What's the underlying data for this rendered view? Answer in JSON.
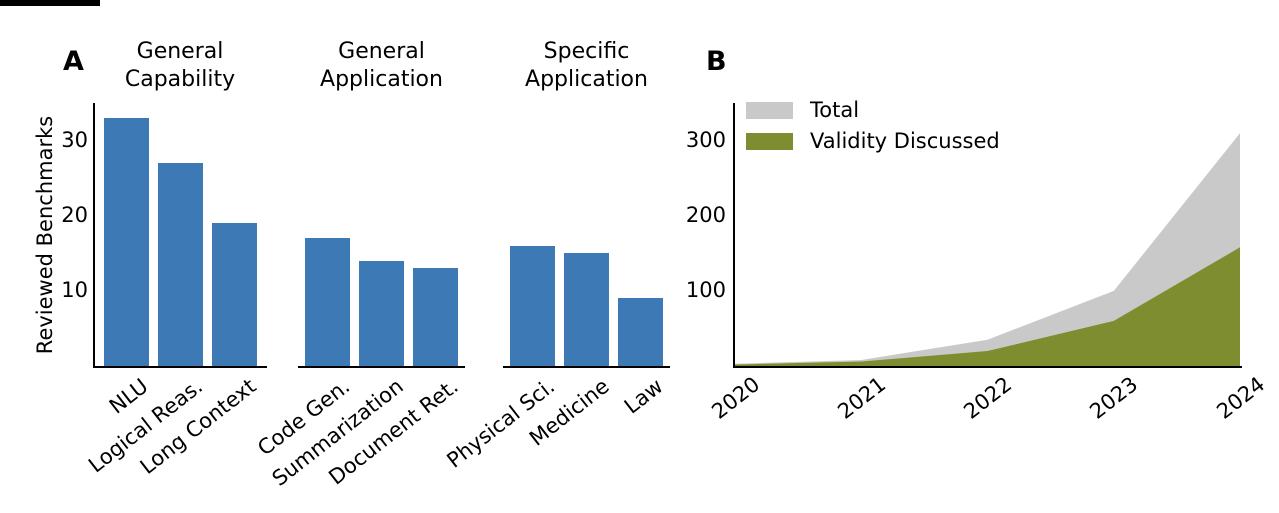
{
  "panels": {
    "a": "A",
    "b": "B"
  },
  "chart_data": [
    {
      "type": "bar",
      "panel": "A",
      "ylabel": "Reviewed Benchmarks",
      "ylim": [
        0,
        35
      ],
      "yticks": [
        30,
        20,
        10
      ],
      "grid": false,
      "bar_color": "#3d7ab5",
      "groups": [
        {
          "title": "General Capability",
          "categories": [
            "NLU",
            "Logical Reas.",
            "Long Context"
          ],
          "values": [
            33,
            27,
            19
          ]
        },
        {
          "title": "General Application",
          "categories": [
            "Code Gen.",
            "Summarization",
            "Document Ret."
          ],
          "values": [
            17,
            14,
            13
          ]
        },
        {
          "title": "Specific Application",
          "categories": [
            "Physical Sci.",
            "Medicine",
            "Law"
          ],
          "values": [
            16,
            15,
            9
          ]
        }
      ]
    },
    {
      "type": "area",
      "panel": "B",
      "x": [
        2020,
        2021,
        2022,
        2023,
        2024
      ],
      "xtick_labels": [
        "2020",
        "2021",
        "2022",
        "2023",
        "2024"
      ],
      "ylim": [
        0,
        350
      ],
      "yticks": [
        300,
        200,
        100
      ],
      "grid": false,
      "legend_position": "upper left",
      "series": [
        {
          "name": "Total",
          "color": "#c9c9c9",
          "values": [
            3,
            8,
            35,
            100,
            310
          ]
        },
        {
          "name": "Validity Discussed",
          "color": "#7e8d2f",
          "values": [
            2,
            6,
            20,
            60,
            158
          ]
        }
      ]
    }
  ]
}
